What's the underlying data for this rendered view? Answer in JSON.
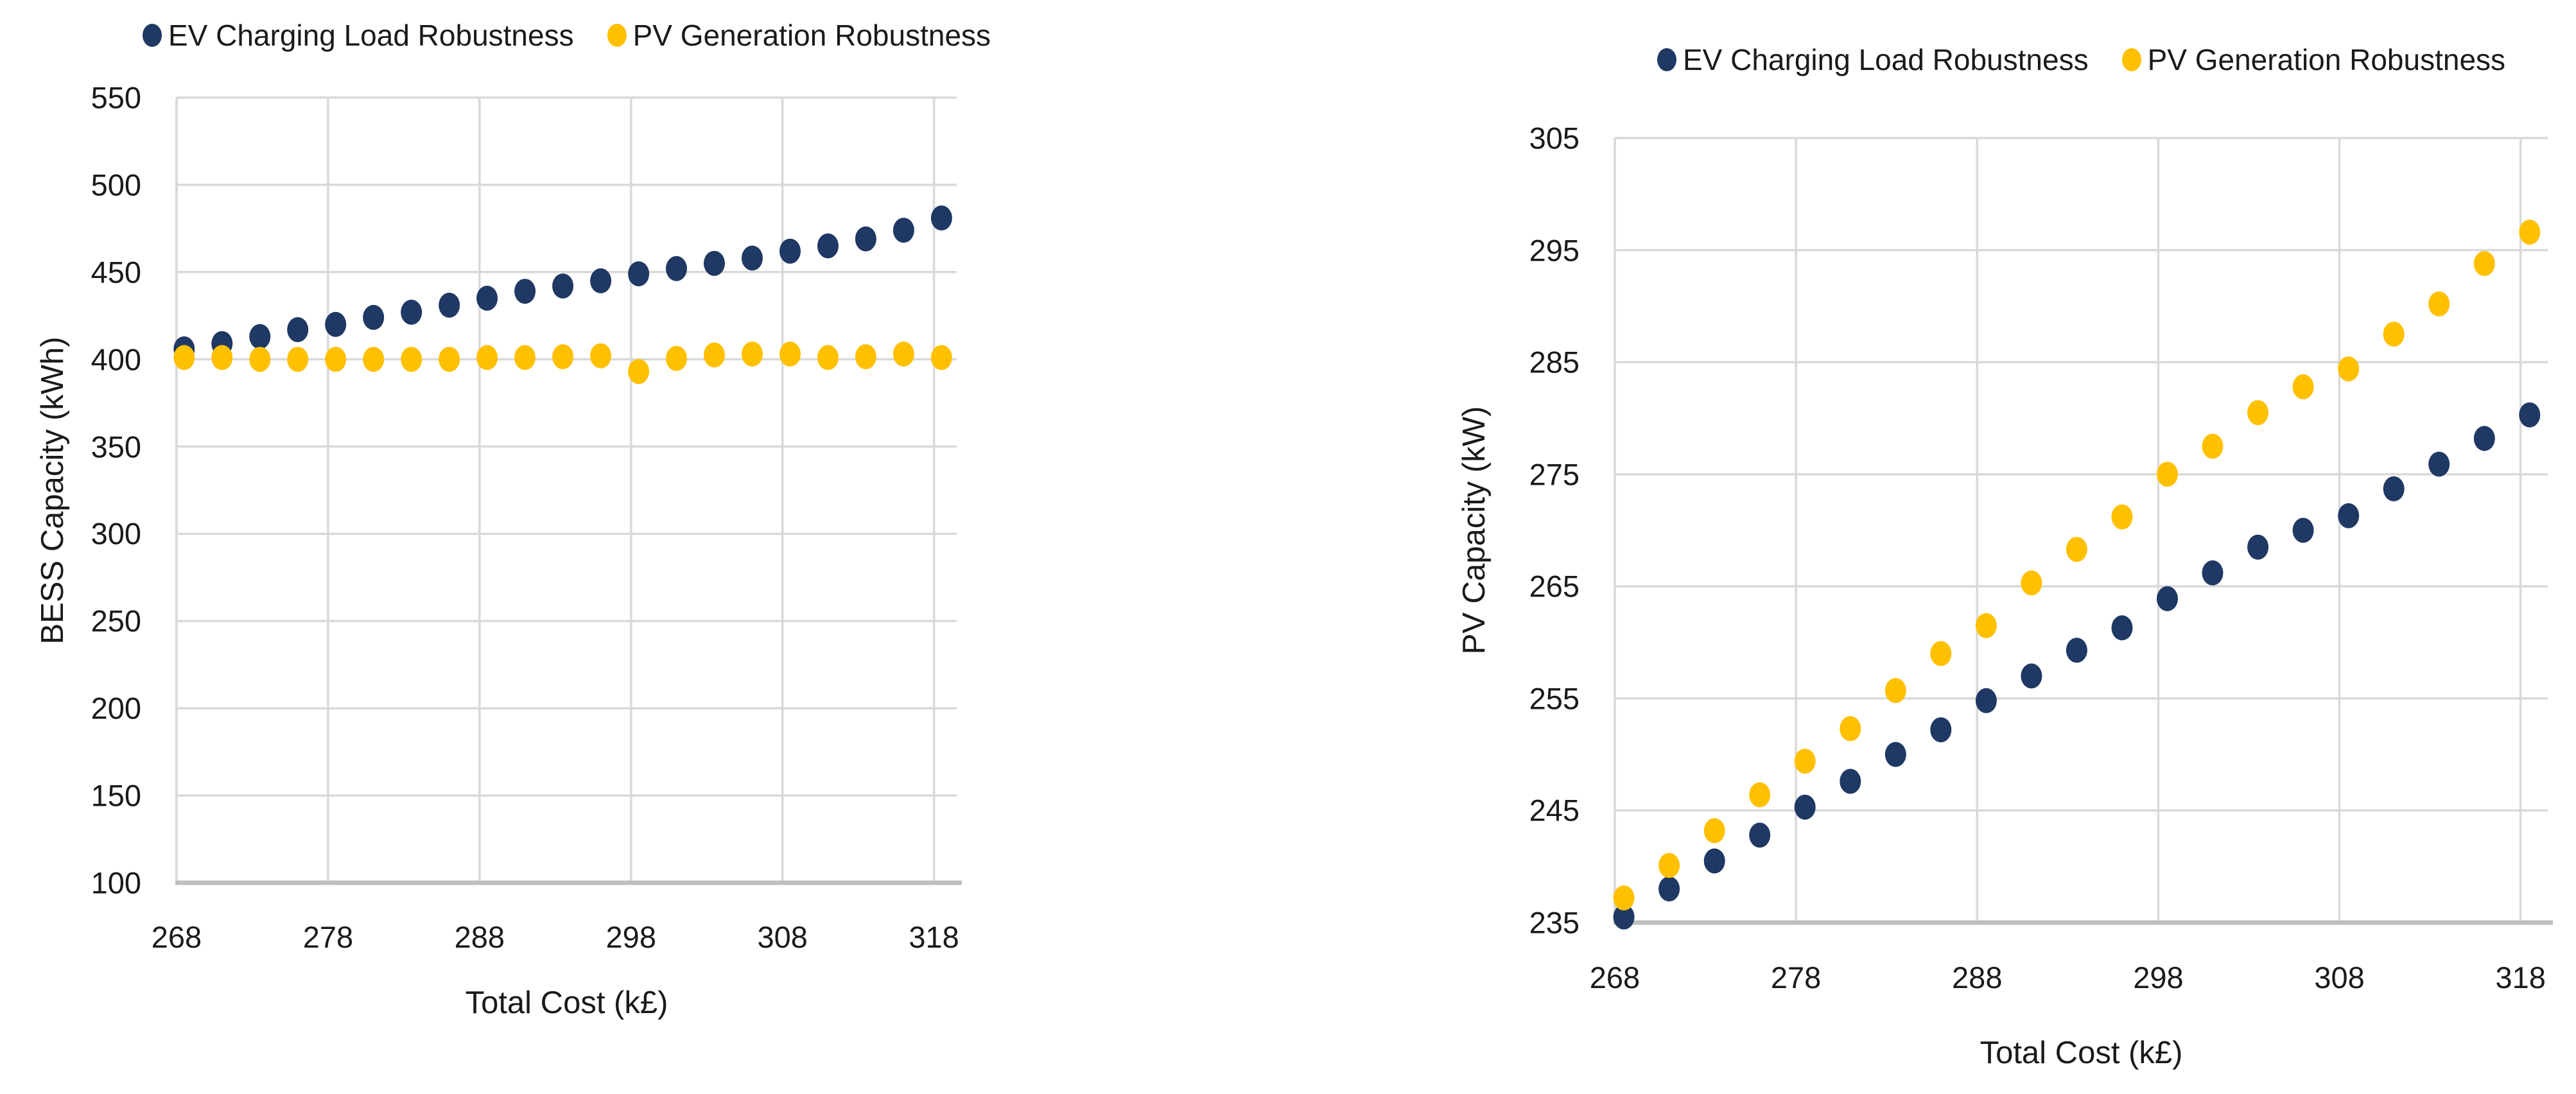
{
  "colors": {
    "ev_navy": "#1F3864",
    "pv_gold": "#FFC000",
    "gridline": "#D9D9D9",
    "axis_line": "#BFBFBF",
    "text": "#1A1A1A",
    "background": "#FFFFFF"
  },
  "legend": {
    "items": [
      {
        "label": "EV Charging Load Robustness",
        "color": "#1F3864"
      },
      {
        "label": "PV Generation Robustness",
        "color": "#FFC000"
      }
    ]
  },
  "chart_data": [
    {
      "type": "scatter",
      "title": "",
      "xlabel": "Total Cost (k£)",
      "ylabel": "BESS Capacity (kWh)",
      "xlim": [
        268,
        319.5
      ],
      "ylim": [
        100,
        550
      ],
      "xticks": [
        268,
        278,
        288,
        298,
        308,
        318
      ],
      "yticks": [
        100,
        150,
        200,
        250,
        300,
        350,
        400,
        450,
        500,
        550
      ],
      "grid": true,
      "legend_position": "top-center",
      "x": [
        268.5,
        271,
        273.5,
        276,
        278.5,
        281,
        283.5,
        286,
        288.5,
        291,
        293.5,
        296,
        298.5,
        301,
        303.5,
        306,
        308.5,
        311,
        313.5,
        316,
        318.5
      ],
      "series": [
        {
          "name": "EV Charging Load Robustness",
          "color": "#1F3864",
          "values": [
            406,
            409,
            413,
            417,
            420,
            424,
            427,
            431,
            435,
            439,
            442,
            445,
            449,
            452,
            455,
            458,
            462,
            465,
            469,
            474,
            481
          ]
        },
        {
          "name": "PV Generation Robustness",
          "color": "#FFC000",
          "values": [
            401,
            401,
            400,
            400,
            400,
            400,
            400,
            400,
            401,
            401,
            401.5,
            402,
            393,
            400.5,
            402.5,
            403,
            403,
            401,
            401.5,
            403,
            401
          ]
        }
      ]
    },
    {
      "type": "scatter",
      "title": "",
      "xlabel": "Total Cost (k£)",
      "ylabel": "PV Capacity (kW)",
      "xlim": [
        268,
        319.5
      ],
      "ylim": [
        235,
        305
      ],
      "xticks": [
        268,
        278,
        288,
        298,
        308,
        318
      ],
      "yticks": [
        235,
        245,
        255,
        265,
        275,
        285,
        295,
        305
      ],
      "grid": true,
      "legend_position": "top-center",
      "x": [
        268.5,
        271,
        273.5,
        276,
        278.5,
        281,
        283.5,
        286,
        288.5,
        291,
        293.5,
        296,
        298.5,
        301,
        303.5,
        306,
        308.5,
        311,
        313.5,
        316,
        318.5
      ],
      "series": [
        {
          "name": "EV Charging Load Robustness",
          "color": "#1F3864",
          "values": [
            235.5,
            238,
            240.5,
            242.8,
            245.3,
            247.6,
            250,
            252.2,
            254.8,
            257,
            259.3,
            261.3,
            263.9,
            266.2,
            268.5,
            270,
            271.3,
            273.7,
            275.9,
            278.2,
            280.3
          ]
        },
        {
          "name": "PV Generation Robustness",
          "color": "#FFC000",
          "values": [
            237.2,
            240.1,
            243.2,
            246.4,
            249.4,
            252.3,
            255.7,
            259,
            261.5,
            265.3,
            268.3,
            271.2,
            275,
            277.5,
            280.5,
            282.8,
            284.4,
            287.5,
            290.2,
            293.8,
            296.6
          ]
        }
      ]
    }
  ]
}
